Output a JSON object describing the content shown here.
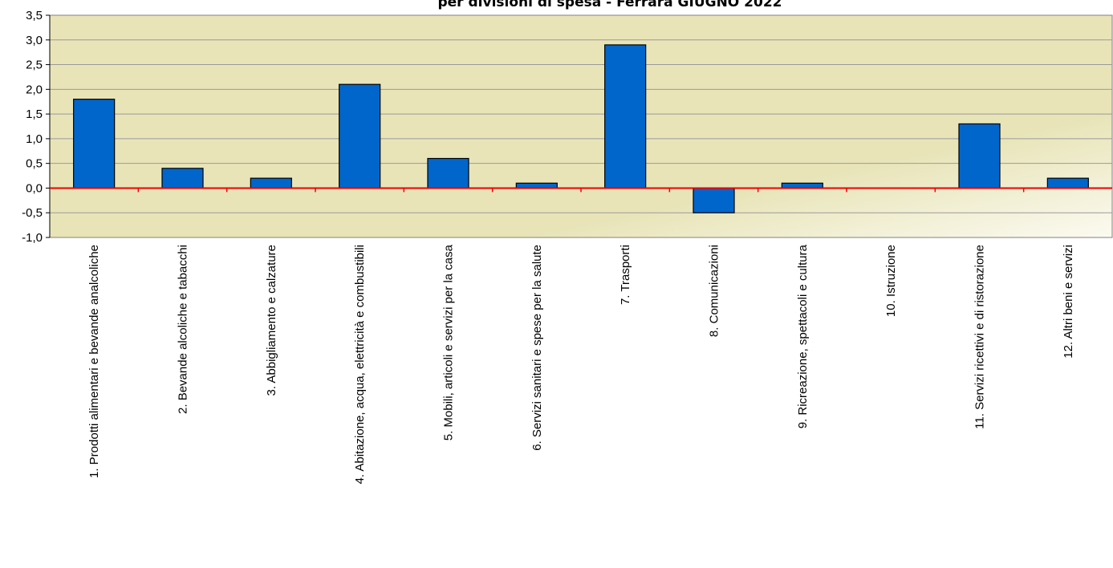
{
  "chart_data": {
    "type": "bar",
    "title": "per divisioni  di spesa - Ferrara GIUGNO 2022",
    "categories": [
      "1. Prodotti alimentari e bevande analcoliche",
      "2. Bevande alcoliche e tabacchi",
      "3. Abbigliamento e calzature",
      "4. Abitazione, acqua, elettricità e combustibili",
      "5. Mobili, articoli e servizi per la casa",
      "6. Servizi sanitari e spese per la salute",
      "7. Trasporti",
      "8. Comunicazioni",
      "9. Ricreazione, spettacoli e cultura",
      "10. Istruzione",
      "11. Servizi ricettivi e di ristorazione",
      "12. Altri beni e servizi"
    ],
    "values": [
      1.8,
      0.4,
      0.2,
      2.1,
      0.6,
      0.1,
      2.9,
      -0.5,
      0.1,
      0.0,
      1.3,
      0.2
    ],
    "ylim": [
      -1.0,
      3.5
    ],
    "yticks": [
      "3,5",
      "3,0",
      "2,5",
      "2,0",
      "1,5",
      "1,0",
      "0,5",
      "0,0",
      "-0,5",
      "-1,0"
    ],
    "ytick_values": [
      3.5,
      3.0,
      2.5,
      2.0,
      1.5,
      1.0,
      0.5,
      0.0,
      -0.5,
      -1.0
    ],
    "grid": true,
    "xlabel": "",
    "ylabel": "",
    "colors": {
      "bar": "#0066cc",
      "plot_background": "#e8e4b8",
      "plot_background_light": "#fbfaf0",
      "zero_line": "#ee0000",
      "grid": "#9a9a9a"
    }
  }
}
